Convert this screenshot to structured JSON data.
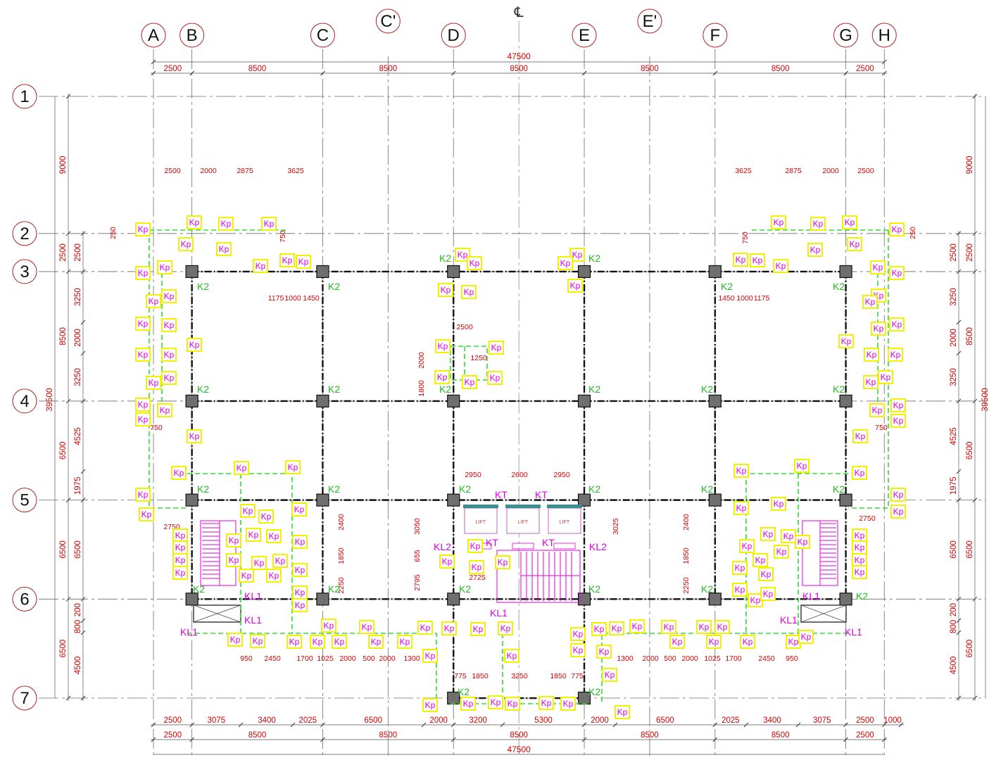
{
  "drawing": {
    "centerline_mark": "℄",
    "grid_x": [
      {
        "label": "A",
        "pos": 0
      },
      {
        "label": "B",
        "pos": 2500
      },
      {
        "label": "C",
        "pos": 11000
      },
      {
        "label": "C'",
        "pos": 15250
      },
      {
        "label": "D",
        "pos": 19500
      },
      {
        "label": "E",
        "pos": 28000
      },
      {
        "label": "E'",
        "pos": 32250
      },
      {
        "label": "F",
        "pos": 36500
      },
      {
        "label": "G",
        "pos": 45000
      },
      {
        "label": "H",
        "pos": 47500
      }
    ],
    "grid_y": [
      {
        "label": "1",
        "pos": 0
      },
      {
        "label": "2",
        "pos": 9000
      },
      {
        "label": "3",
        "pos": 11500
      },
      {
        "label": "4",
        "pos": 20000
      },
      {
        "label": "5",
        "pos": 26500
      },
      {
        "label": "6",
        "pos": 33000
      },
      {
        "label": "7",
        "pos": 39500
      }
    ],
    "top_overall": "47500",
    "top_spans": [
      "2500",
      "8500",
      "8500",
      "8500",
      "8500",
      "8500",
      "2500"
    ],
    "bottom_spans_1": [
      "2500",
      "3075",
      "3400",
      "2025",
      "6500",
      "2000",
      "3200",
      "5300",
      "2000",
      "6500",
      "2025",
      "3400",
      "3075",
      "2500",
      "1000"
    ],
    "bottom_spans_2": [
      "2500",
      "8500",
      "8500",
      "8500",
      "8500",
      "8500",
      "2500"
    ],
    "bottom_overall": "47500",
    "left_overall": "39500",
    "right_overall": "39500",
    "left_spans": [
      "9000",
      "2500",
      "8500",
      "6500",
      "6500",
      "6500"
    ],
    "left_sub_spans": [
      "2500",
      "3250",
      "2000",
      "3250",
      "4525",
      "1975",
      "6500",
      "200",
      "800",
      "4500"
    ],
    "right_spans": [
      "9000",
      "2500",
      "8500",
      "6500",
      "6500",
      "6500"
    ],
    "right_sub_spans": [
      "2500",
      "3250",
      "2000",
      "3250",
      "4525",
      "1975",
      "6500",
      "200",
      "800",
      "4500"
    ],
    "inner_dims": [
      "2500",
      "2000",
      "2875",
      "3625",
      "3625",
      "2875",
      "2000",
      "2500",
      "1175",
      "1000",
      "1450",
      "1450",
      "1000",
      "1175",
      "2500",
      "1250",
      "2000",
      "1800",
      "2950",
      "2600",
      "2950",
      "3050",
      "655",
      "2795",
      "2725",
      "3025",
      "2400",
      "1850",
      "2250",
      "2400",
      "1850",
      "2250",
      "2750",
      "2750",
      "750",
      "750",
      "250",
      "250",
      "750",
      "750",
      "950",
      "2450",
      "1700",
      "1025",
      "2000",
      "500",
      "2000",
      "1300",
      "1300",
      "2000",
      "500",
      "2000",
      "1025",
      "1700",
      "2450",
      "950",
      "775",
      "1850",
      "3250",
      "1850",
      "775"
    ],
    "column_label": "K2",
    "lift_column_label": "KT",
    "beam_labels": {
      "kl1": "KL1",
      "kl2": "KL2"
    },
    "pile_label": "Kp",
    "lift_label": "LIFT",
    "colors": {
      "grid": "#6b6b6b",
      "bubble": "#b02020",
      "dimension": "#d40000",
      "column_fill": "#6f6f6f",
      "beam": "#111111",
      "label_green": "#22bb22",
      "magenta": "#e000e0",
      "pile_box": "#f2f200",
      "pile_line": "#33dd33",
      "lift": "#c060c0",
      "lift_door": "#3a8f8f"
    }
  }
}
